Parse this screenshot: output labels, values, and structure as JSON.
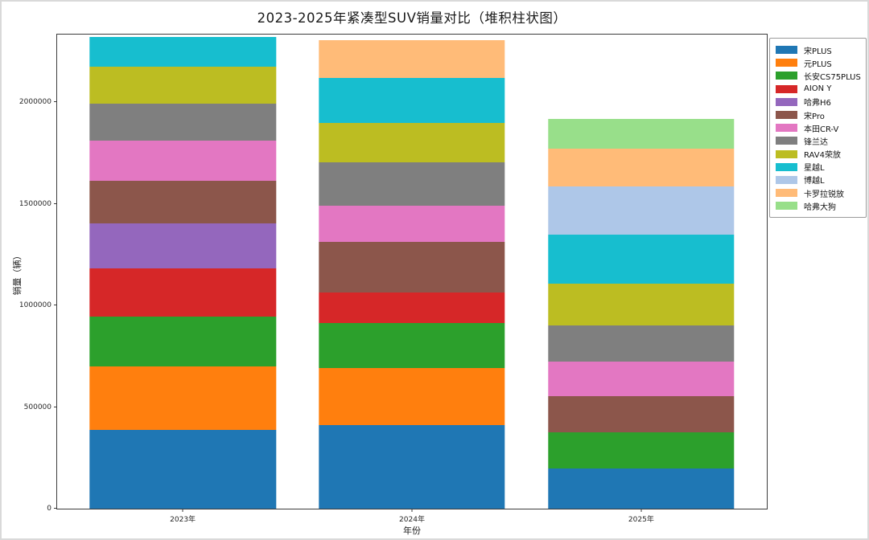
{
  "figure": {
    "border_color": "#d9d9d9",
    "background": "#ffffff",
    "spine_color": "#3c3c3c"
  },
  "chart_data": {
    "type": "bar",
    "stacked": true,
    "title": "2023-2025年紧凑型SUV销量对比（堆积柱状图）",
    "xlabel": "年份",
    "ylabel": "销量（辆）",
    "categories": [
      "2023年",
      "2024年",
      "2025年"
    ],
    "series": [
      {
        "name": "宋PLUS",
        "color": "#1f77b4",
        "values": [
          388000,
          413000,
          196000
        ]
      },
      {
        "name": "元PLUS",
        "color": "#ff7f0e",
        "values": [
          314000,
          280000,
          0
        ]
      },
      {
        "name": "长安CS75PLUS",
        "color": "#2ca02c",
        "values": [
          245000,
          220000,
          180000
        ]
      },
      {
        "name": "AION Y",
        "color": "#d62728",
        "values": [
          235000,
          153000,
          0
        ]
      },
      {
        "name": "哈弗H6",
        "color": "#9467bd",
        "values": [
          221000,
          0,
          0
        ]
      },
      {
        "name": "宋Pro",
        "color": "#8c564b",
        "values": [
          213000,
          248000,
          177000
        ]
      },
      {
        "name": "本田CR-V",
        "color": "#e377c2",
        "values": [
          195000,
          177000,
          171000
        ]
      },
      {
        "name": "锋兰达",
        "color": "#7f7f7f",
        "values": [
          184000,
          213000,
          178000
        ]
      },
      {
        "name": "RAV4荣放",
        "color": "#bcbd22",
        "values": [
          181000,
          197000,
          206000
        ]
      },
      {
        "name": "星越L",
        "color": "#17becf",
        "values": [
          148000,
          218000,
          240000
        ]
      },
      {
        "name": "博越L",
        "color": "#aec7e8",
        "values": [
          0,
          0,
          237000
        ]
      },
      {
        "name": "卡罗拉锐放",
        "color": "#ffbb78",
        "values": [
          0,
          186000,
          186000
        ]
      },
      {
        "name": "哈弗大狗",
        "color": "#98df8a",
        "values": [
          0,
          0,
          149000
        ]
      }
    ],
    "totals": [
      2324000,
      2305000,
      1920000
    ],
    "yticks": [
      0,
      500000,
      1000000,
      1500000,
      2000000
    ],
    "ytick_labels": [
      "0",
      "500000",
      "1000000",
      "1500000",
      "2000000"
    ],
    "ylim": [
      0,
      2334000
    ],
    "bar_center_fractions": [
      0.177,
      0.5,
      0.823
    ],
    "grid": false,
    "legend_position": "upper-right-outside"
  }
}
